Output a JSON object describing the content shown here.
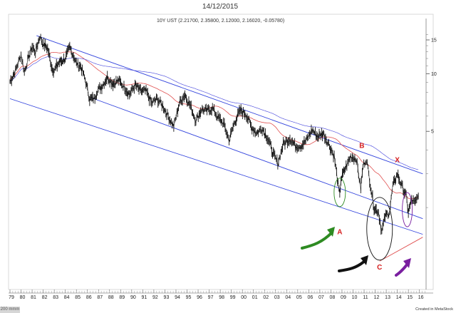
{
  "header": {
    "date": "14/12/2015"
  },
  "footer": {
    "zoom": "200 mmm",
    "credit": "Created in MetaStock"
  },
  "chart_data": {
    "type": "candlestick-line",
    "title": "10Y UST (2.21700, 2.35800, 2.12000, 2.16020, -0.05780)",
    "x_ticks": [
      "79",
      "80",
      "81",
      "82",
      "83",
      "84",
      "85",
      "86",
      "87",
      "88",
      "89",
      "90",
      "91",
      "92",
      "93",
      "94",
      "95",
      "96",
      "97",
      "98",
      "99",
      "00",
      "01",
      "02",
      "03",
      "04",
      "05",
      "06",
      "07",
      "08",
      "09",
      "10",
      "11",
      "12",
      "13",
      "14",
      "15",
      "16"
    ],
    "y_ticks": [
      15,
      10,
      5
    ],
    "ylim": [
      0.8,
      17.5
    ],
    "price": [
      [
        79.0,
        9.1
      ],
      [
        79.5,
        10.4
      ],
      [
        80.0,
        12.6
      ],
      [
        80.3,
        10.2
      ],
      [
        80.6,
        11.8
      ],
      [
        81.0,
        13.8
      ],
      [
        81.3,
        13.0
      ],
      [
        81.7,
        15.7
      ],
      [
        82.0,
        14.3
      ],
      [
        82.4,
        13.6
      ],
      [
        82.8,
        10.7
      ],
      [
        83.0,
        10.4
      ],
      [
        83.4,
        11.4
      ],
      [
        83.8,
        11.8
      ],
      [
        84.0,
        12.0
      ],
      [
        84.4,
        13.7
      ],
      [
        84.8,
        12.2
      ],
      [
        85.0,
        11.3
      ],
      [
        85.4,
        10.9
      ],
      [
        85.8,
        9.3
      ],
      [
        86.2,
        7.4
      ],
      [
        86.6,
        7.4
      ],
      [
        86.9,
        8.2
      ],
      [
        87.3,
        8.6
      ],
      [
        87.8,
        9.6
      ],
      [
        88.3,
        8.9
      ],
      [
        88.8,
        9.2
      ],
      [
        89.3,
        8.6
      ],
      [
        89.8,
        7.8
      ],
      [
        90.3,
        8.7
      ],
      [
        90.8,
        8.1
      ],
      [
        91.3,
        8.1
      ],
      [
        91.8,
        7.0
      ],
      [
        92.3,
        7.4
      ],
      [
        92.8,
        6.8
      ],
      [
        93.3,
        6.0
      ],
      [
        93.8,
        5.3
      ],
      [
        94.3,
        7.0
      ],
      [
        94.8,
        7.8
      ],
      [
        95.3,
        6.8
      ],
      [
        95.8,
        5.7
      ],
      [
        96.3,
        6.5
      ],
      [
        96.8,
        6.4
      ],
      [
        97.3,
        6.6
      ],
      [
        97.8,
        5.9
      ],
      [
        98.3,
        5.5
      ],
      [
        98.8,
        4.5
      ],
      [
        99.3,
        5.6
      ],
      [
        99.8,
        6.4
      ],
      [
        100.3,
        6.2
      ],
      [
        100.8,
        5.3
      ],
      [
        101.3,
        4.9
      ],
      [
        101.8,
        5.2
      ],
      [
        102.3,
        4.6
      ],
      [
        102.8,
        3.8
      ],
      [
        103.2,
        3.4
      ],
      [
        103.7,
        4.3
      ],
      [
        104.3,
        4.6
      ],
      [
        104.8,
        4.2
      ],
      [
        105.3,
        4.2
      ],
      [
        105.8,
        4.5
      ],
      [
        106.3,
        5.1
      ],
      [
        106.8,
        4.7
      ],
      [
        107.3,
        4.9
      ],
      [
        107.8,
        4.3
      ],
      [
        108.3,
        3.7
      ],
      [
        108.8,
        2.3
      ],
      [
        108.9,
        2.8
      ],
      [
        109.3,
        3.2
      ],
      [
        109.8,
        3.7
      ],
      [
        110.3,
        3.6
      ],
      [
        110.7,
        2.5
      ],
      [
        110.9,
        3.3
      ],
      [
        111.2,
        3.6
      ],
      [
        111.5,
        2.8
      ],
      [
        111.9,
        2.0
      ],
      [
        112.3,
        1.9
      ],
      [
        112.6,
        1.5
      ],
      [
        112.9,
        1.8
      ],
      [
        113.3,
        1.9
      ],
      [
        113.6,
        2.6
      ],
      [
        114.0,
        3.0
      ],
      [
        114.4,
        2.6
      ],
      [
        114.8,
        2.3
      ],
      [
        115.0,
        1.9
      ],
      [
        115.3,
        2.2
      ],
      [
        115.6,
        2.1
      ],
      [
        115.9,
        2.3
      ]
    ],
    "annotations": [
      {
        "label": "A",
        "color": "#d62020"
      },
      {
        "label": "B",
        "color": "#d62020"
      },
      {
        "label": "C",
        "color": "#d62020"
      },
      {
        "label": "X",
        "color": "#d62020"
      }
    ],
    "arrows": [
      {
        "color": "#2e8b22"
      },
      {
        "color": "#111111"
      },
      {
        "color": "#7a1fa0"
      }
    ]
  }
}
